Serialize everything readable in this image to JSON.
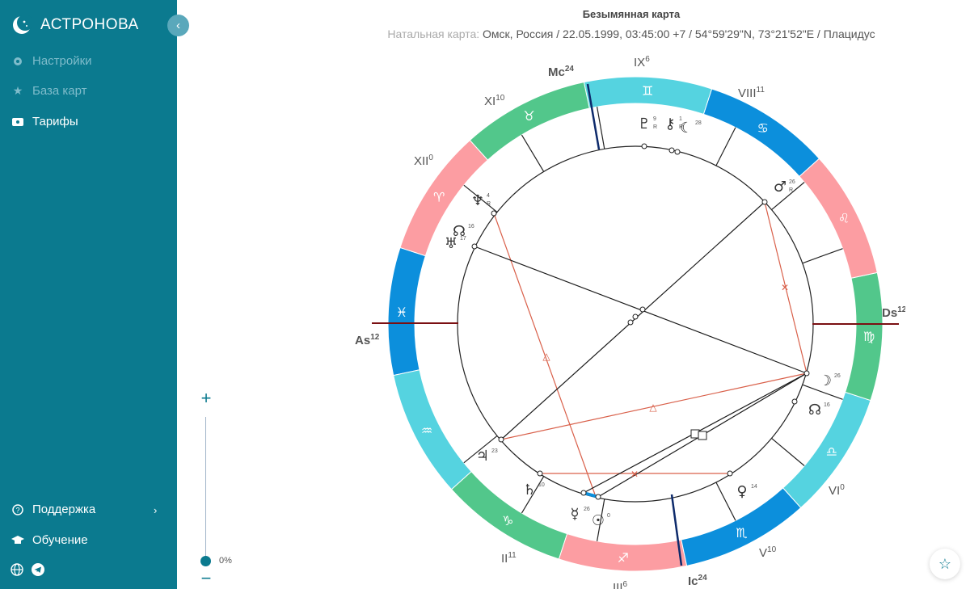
{
  "app": {
    "name": "АСТРОНОВА",
    "collapse_glyph": "‹"
  },
  "sidebar": {
    "items": [
      {
        "label": "Настройки",
        "icon": "gear-icon"
      },
      {
        "label": "База карт",
        "icon": "star-icon"
      },
      {
        "label": "Тарифы",
        "icon": "card-icon"
      }
    ],
    "bottom": [
      {
        "label": "Поддержка",
        "icon": "help-circle-icon"
      },
      {
        "label": "Обучение",
        "icon": "graduation-cap-icon"
      }
    ],
    "footer_icons": [
      "globe-icon",
      "telegram-icon"
    ]
  },
  "header": {
    "title": "Безымянная карта",
    "subtitle_label": "Натальная карта:",
    "subtitle_value": "Омск, Россия / 22.05.1999, 03:45:00 +7 / 54°59'29\"N, 73°21'52\"E / Плацидус"
  },
  "zoom": {
    "plus": "+",
    "minus": "−",
    "level_text": "0%",
    "level": 0
  },
  "chart": {
    "axes": {
      "as": {
        "label": "As",
        "sup": "12"
      },
      "ds": {
        "label": "Ds",
        "sup": "12"
      },
      "mc": {
        "label": "Mc",
        "sup": "24"
      },
      "ic": {
        "label": "Ic",
        "sup": "24"
      }
    },
    "houses": [
      {
        "label": "XII",
        "sup": "0"
      },
      {
        "label": "XI",
        "sup": "10"
      },
      {
        "label": "IX",
        "sup": "6"
      },
      {
        "label": "VIII",
        "sup": "11"
      },
      {
        "label": "VI",
        "sup": "0"
      },
      {
        "label": "V",
        "sup": "10"
      },
      {
        "label": "III",
        "sup": "6"
      },
      {
        "label": "II",
        "sup": "11"
      }
    ],
    "zodiac": [
      {
        "glyph": "♓",
        "color": "#0c8fdc"
      },
      {
        "glyph": "♒",
        "color": "#55d3e0"
      },
      {
        "glyph": "♑",
        "color": "#52c78b"
      },
      {
        "glyph": "♐",
        "color": "#fc9da2"
      },
      {
        "glyph": "♏",
        "color": "#0c8fdc"
      },
      {
        "glyph": "♎",
        "color": "#55d3e0"
      },
      {
        "glyph": "♍",
        "color": "#52c78b"
      },
      {
        "glyph": "♌",
        "color": "#fc9da2"
      },
      {
        "glyph": "♋",
        "color": "#0c8fdc"
      },
      {
        "glyph": "♊",
        "color": "#55d3e0"
      },
      {
        "glyph": "♉",
        "color": "#52c78b"
      },
      {
        "glyph": "♈",
        "color": "#fc9da2"
      }
    ],
    "planets": [
      {
        "glyph": "♇",
        "deg": "9",
        "r": "R"
      },
      {
        "glyph": "⚷",
        "deg": "1",
        "r": "R"
      },
      {
        "glyph": "☾",
        "deg": "28",
        "r": ""
      },
      {
        "glyph": "♂",
        "deg": "26",
        "r": "R"
      },
      {
        "glyph": "♆",
        "deg": "4",
        "r": "R"
      },
      {
        "glyph": "☊",
        "deg": "16",
        "r": ""
      },
      {
        "glyph": "♅",
        "deg": "17",
        "r": ""
      },
      {
        "glyph": "☽",
        "deg": "26",
        "r": ""
      },
      {
        "glyph": "☊",
        "deg": "16",
        "r": ""
      },
      {
        "glyph": "♃",
        "deg": "23",
        "r": ""
      },
      {
        "glyph": "♀",
        "deg": "14",
        "r": ""
      },
      {
        "glyph": "♄",
        "deg": "10",
        "r": ""
      },
      {
        "glyph": "☿",
        "deg": "26",
        "r": ""
      },
      {
        "glyph": "☉",
        "deg": "0",
        "r": ""
      }
    ],
    "colors": {
      "axis": "#7a0f12",
      "midheaven": "#0d2a6b",
      "aspect_red": "#d9604a",
      "aspect_black": "#1a1a1a"
    }
  }
}
